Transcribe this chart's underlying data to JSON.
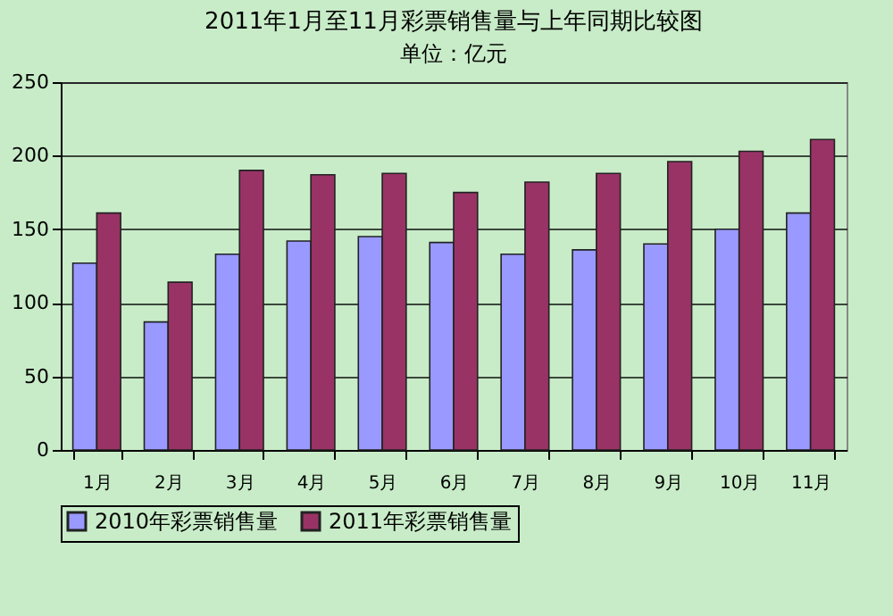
{
  "chart_data": {
    "type": "bar",
    "title": "2011年1月至11月彩票销售量与上年同期比较图",
    "subtitle": "单位：亿元",
    "categories": [
      "1月",
      "2月",
      "3月",
      "4月",
      "5月",
      "6月",
      "7月",
      "8月",
      "9月",
      "10月",
      "11月"
    ],
    "series": [
      {
        "name": "2010年彩票销售量",
        "color": "#9999ff",
        "values": [
          127,
          87,
          133,
          142,
          145,
          141,
          133,
          136,
          140,
          150,
          161
        ]
      },
      {
        "name": "2011年彩票销售量",
        "color": "#993366",
        "values": [
          161,
          114,
          190,
          187,
          188,
          175,
          182,
          188,
          196,
          203,
          211
        ]
      }
    ],
    "ylim": [
      0,
      250
    ],
    "yticks": [
      0,
      50,
      100,
      150,
      200,
      250
    ],
    "grid": "y",
    "legend": "bottom"
  }
}
